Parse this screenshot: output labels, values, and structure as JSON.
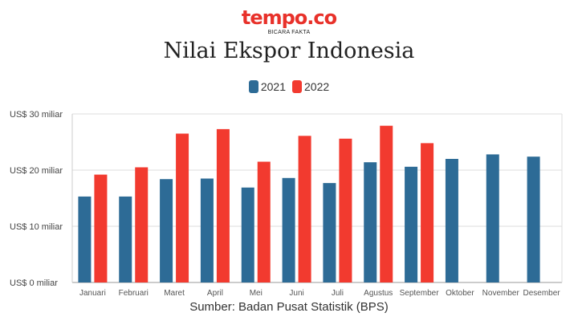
{
  "logo": {
    "text": "tempo.co",
    "tagline": "BICARA FAKTA",
    "color": "#e8312a"
  },
  "chart_data": {
    "type": "bar",
    "title": "Nilai Ekspor Indonesia",
    "categories": [
      "Januari",
      "Februari",
      "Maret",
      "April",
      "Mei",
      "Juni",
      "Juli",
      "Agustus",
      "September",
      "Oktober",
      "November",
      "Desember"
    ],
    "series": [
      {
        "name": "2021",
        "color": "#2d6b96",
        "values": [
          15.3,
          15.3,
          18.4,
          18.5,
          16.9,
          18.6,
          17.7,
          21.4,
          20.6,
          22.0,
          22.8,
          22.4
        ]
      },
      {
        "name": "2022",
        "color": "#f23a2f",
        "values": [
          19.2,
          20.5,
          26.5,
          27.3,
          21.5,
          26.1,
          25.6,
          27.9,
          24.8,
          null,
          null,
          null
        ]
      }
    ],
    "yticks": [
      {
        "value": 0,
        "label": "US$ 0 miliar"
      },
      {
        "value": 10,
        "label": "US$ 10 miliar"
      },
      {
        "value": 20,
        "label": "US$ 20 miliar"
      },
      {
        "value": 30,
        "label": "US$ 30 miliar"
      }
    ],
    "ylim": [
      0,
      30
    ],
    "xlabel": "",
    "ylabel": "",
    "grid": true,
    "legend_position": "top-center"
  },
  "source": "Sumber: Badan Pusat Statistik (BPS)"
}
